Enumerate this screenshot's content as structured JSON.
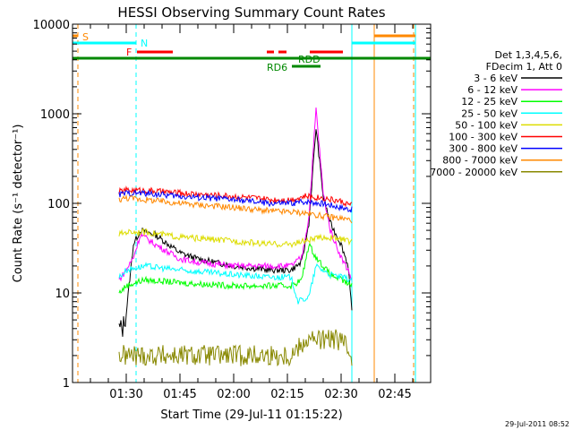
{
  "chart_data": {
    "type": "line",
    "title": "HESSI Observing Summary Count Rates",
    "xlabel": "Start Time (29-Jul-11 01:15:22)",
    "ylabel": "Count Rate (s⁻¹ detector⁻¹)",
    "yscale": "log",
    "ylim": [
      1,
      10000
    ],
    "xlim_minutes_after_0115": [
      0,
      100
    ],
    "x_ticks": [
      "01:30",
      "01:45",
      "02:00",
      "02:15",
      "02:30",
      "02:45"
    ],
    "y_ticks": [
      "1",
      "10",
      "100",
      "1000",
      "10000"
    ],
    "grid": false,
    "legend_position": "right",
    "legend_header": [
      "Det 1,3,4,5,6,",
      "FDecim 1, Att 0"
    ],
    "footer": "29-Jul-2011 08:52",
    "series": [
      {
        "name": "3 - 6 keV",
        "color": "#000000",
        "x": [
          "01:28",
          "01:29",
          "01:30",
          "01:32",
          "01:34",
          "01:38",
          "01:45",
          "01:50",
          "02:00",
          "02:10",
          "02:16",
          "02:19",
          "02:21",
          "02:23",
          "02:25",
          "02:27",
          "02:30",
          "02:32",
          "02:33"
        ],
        "values": [
          4,
          4,
          6,
          35,
          50,
          45,
          28,
          24,
          20,
          18,
          18,
          22,
          60,
          700,
          120,
          60,
          35,
          20,
          6
        ]
      },
      {
        "name": "6 - 12 keV",
        "color": "#ff00ff",
        "x": [
          "01:28",
          "01:30",
          "01:32",
          "01:34",
          "01:38",
          "01:45",
          "01:50",
          "02:00",
          "02:10",
          "02:16",
          "02:19",
          "02:21",
          "02:23",
          "02:25",
          "02:27",
          "02:30",
          "02:32",
          "02:33"
        ],
        "values": [
          14,
          18,
          25,
          45,
          35,
          24,
          22,
          20,
          20,
          20,
          25,
          70,
          1150,
          130,
          50,
          25,
          18,
          14
        ]
      },
      {
        "name": "12 - 25 keV",
        "color": "#00ff00",
        "x": [
          "01:28",
          "01:30",
          "01:35",
          "01:45",
          "02:00",
          "02:10",
          "02:16",
          "02:19",
          "02:21",
          "02:23",
          "02:27",
          "02:30",
          "02:33"
        ],
        "values": [
          10,
          12,
          14,
          13,
          12,
          12,
          12,
          14,
          35,
          25,
          16,
          14,
          12
        ]
      },
      {
        "name": "25 - 50 keV",
        "color": "#00ffff",
        "x": [
          "01:28",
          "01:30",
          "01:35",
          "01:45",
          "02:00",
          "02:10",
          "02:16",
          "02:18",
          "02:21",
          "02:23",
          "02:27",
          "02:30",
          "02:33"
        ],
        "values": [
          15,
          18,
          20,
          18,
          16,
          15,
          15,
          8,
          9,
          20,
          16,
          15,
          14
        ]
      },
      {
        "name": "50 - 100 keV",
        "color": "#dddd00",
        "x": [
          "01:28",
          "01:30",
          "01:35",
          "01:45",
          "02:00",
          "02:10",
          "02:16",
          "02:20",
          "02:25",
          "02:30",
          "02:33"
        ],
        "values": [
          45,
          48,
          48,
          42,
          38,
          35,
          35,
          38,
          42,
          40,
          37
        ]
      },
      {
        "name": "100 - 300 keV",
        "color": "#ff0000",
        "x": [
          "01:28",
          "01:30",
          "01:35",
          "01:45",
          "02:00",
          "02:10",
          "02:16",
          "02:20",
          "02:25",
          "02:30",
          "02:33"
        ],
        "values": [
          135,
          140,
          140,
          130,
          120,
          110,
          110,
          120,
          115,
          105,
          95
        ]
      },
      {
        "name": "300 - 800 keV",
        "color": "#0000ff",
        "x": [
          "01:28",
          "01:30",
          "01:35",
          "01:45",
          "02:00",
          "02:10",
          "02:16",
          "02:20",
          "02:25",
          "02:30",
          "02:33"
        ],
        "values": [
          125,
          130,
          130,
          120,
          110,
          100,
          100,
          105,
          100,
          90,
          85
        ]
      },
      {
        "name": "800 - 7000 keV",
        "color": "#ff8800",
        "x": [
          "01:28",
          "01:30",
          "01:35",
          "01:45",
          "02:00",
          "02:10",
          "02:16",
          "02:20",
          "02:25",
          "02:30",
          "02:33"
        ],
        "values": [
          110,
          115,
          110,
          100,
          90,
          82,
          80,
          78,
          72,
          68,
          65
        ]
      },
      {
        "name": "7000 - 20000 keV",
        "color": "#888800",
        "x": [
          "01:28",
          "01:35",
          "01:45",
          "02:00",
          "02:10",
          "02:16",
          "02:20",
          "02:25",
          "02:30",
          "02:33"
        ],
        "values": [
          2,
          2,
          2,
          2,
          2,
          2,
          3,
          3,
          3,
          2
        ]
      }
    ],
    "status_flags": [
      {
        "label": "S",
        "color": "#ff8800"
      },
      {
        "label": "N",
        "color": "#00ffff"
      },
      {
        "label": "F",
        "color": "#ff0000"
      },
      {
        "label": "RDD",
        "color": "#008800"
      },
      {
        "label": "RD6",
        "color": "#008800"
      }
    ]
  }
}
